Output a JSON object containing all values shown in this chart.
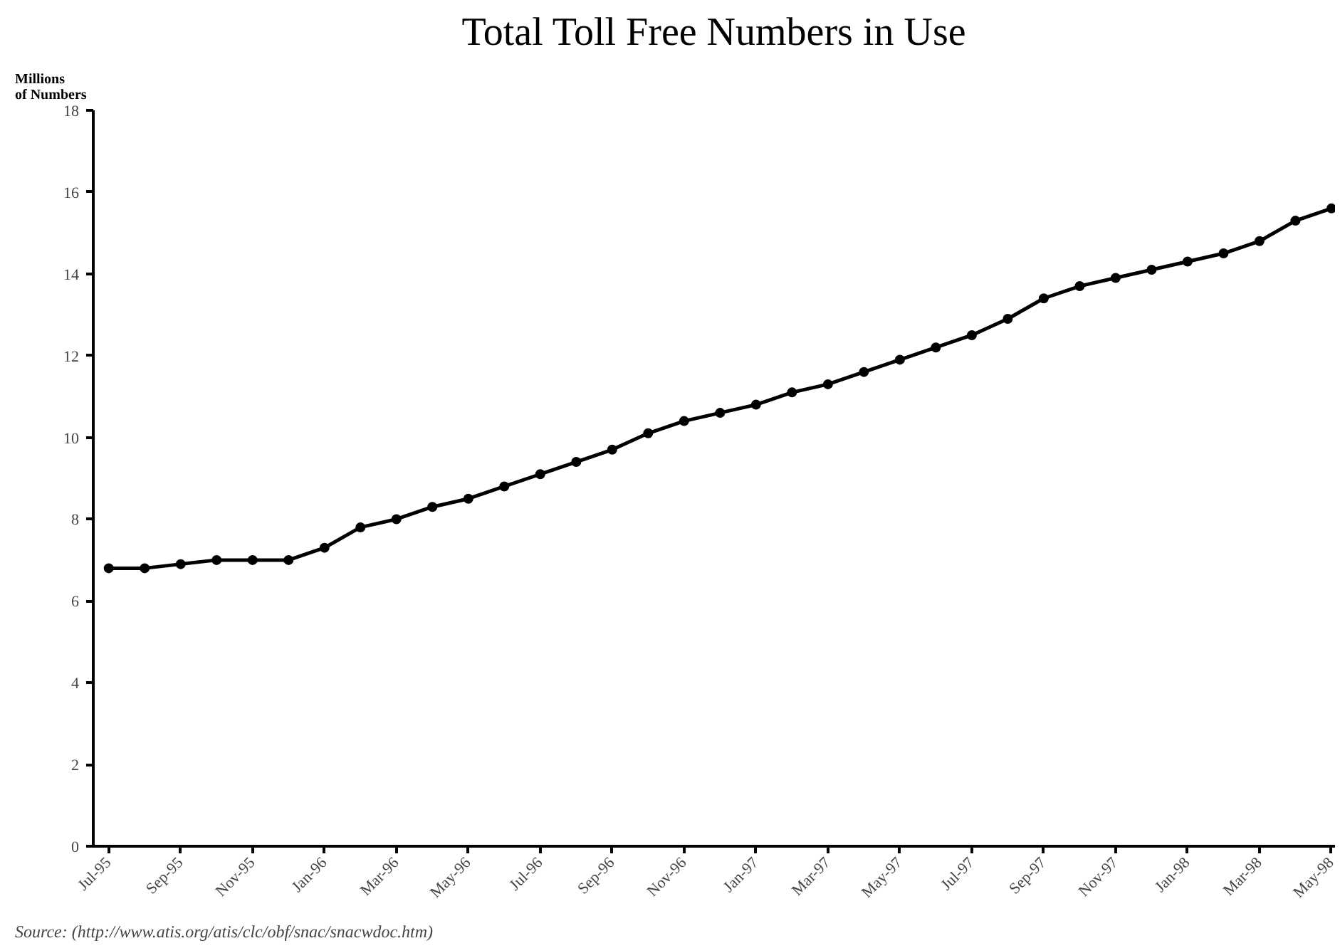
{
  "chart_data": {
    "type": "line",
    "title": "Total Toll Free Numbers in Use",
    "ylabel": "Millions\nof Numbers",
    "categories": [
      "Jul-95",
      null,
      "Sep-95",
      null,
      "Nov-95",
      null,
      "Jan-96",
      null,
      "Mar-96",
      null,
      "May-96",
      null,
      "Jul-96",
      null,
      "Sep-96",
      null,
      "Nov-96",
      null,
      "Jan-97",
      null,
      "Mar-97",
      null,
      "May-97",
      null,
      "Jul-97",
      null,
      "Sep-97",
      null,
      "Nov-97",
      null,
      "Jan-98",
      null,
      "Mar-98",
      null,
      "May-98"
    ],
    "series": [
      {
        "color": "#000000",
        "values": [
          6.8,
          6.8,
          6.9,
          7.0,
          7.0,
          7.0,
          7.3,
          7.8,
          8.0,
          8.3,
          8.5,
          8.8,
          9.1,
          9.4,
          9.7,
          10.1,
          10.4,
          10.6,
          10.8,
          11.1,
          11.3,
          11.6,
          11.9,
          12.2,
          12.5,
          12.9,
          13.4,
          13.7,
          13.9,
          14.1,
          14.3,
          14.5,
          14.8,
          15.3,
          15.6
        ]
      }
    ],
    "ylim": [
      0,
      18
    ],
    "yticks": [
      0,
      2,
      4,
      6,
      8,
      10,
      12,
      14,
      16,
      18
    ],
    "marker": "circle",
    "line_style": "solid",
    "grid": false,
    "annotations": [
      "Source: (http://www.atis.org/atis/clc/obf/snac/snacwdoc.htm)"
    ]
  }
}
